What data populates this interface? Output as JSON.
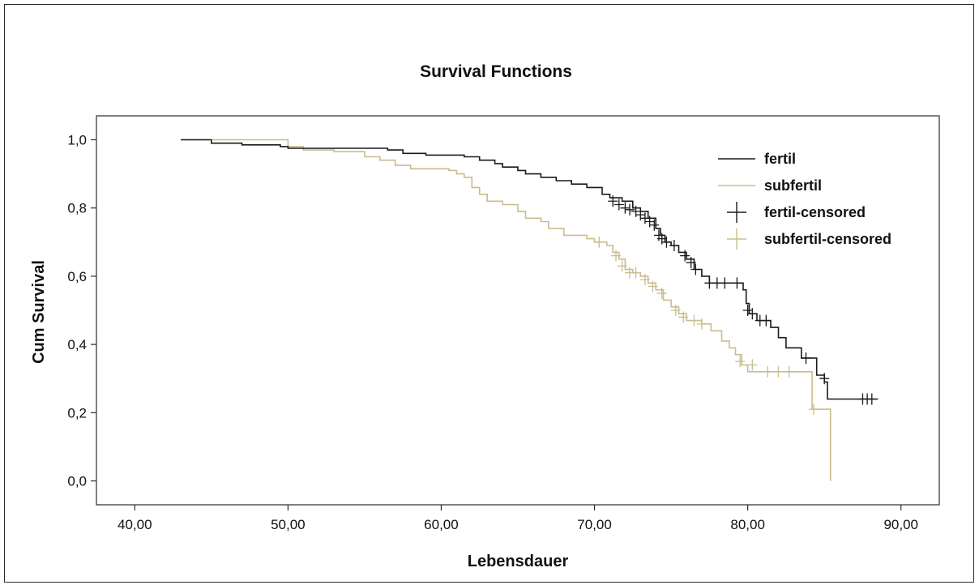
{
  "chart_data": {
    "type": "line",
    "title": "Survival Functions",
    "xlabel": "Lebensdauer",
    "ylabel": "Cum Survival",
    "xlim": [
      37.5,
      92.5
    ],
    "ylim": [
      -0.07,
      1.07
    ],
    "x_ticks": [
      40,
      50,
      60,
      70,
      80,
      90
    ],
    "x_tick_labels": [
      "40,00",
      "50,00",
      "60,00",
      "70,00",
      "80,00",
      "90,00"
    ],
    "y_ticks": [
      0.0,
      0.2,
      0.4,
      0.6,
      0.8,
      1.0
    ],
    "y_tick_labels": [
      "0,0",
      "0,2",
      "0,4",
      "0,6",
      "0,8",
      "1,0"
    ],
    "grid": false,
    "legend_position": "top-right",
    "legend": [
      {
        "label": "fertil",
        "kind": "line",
        "color": "#1a1a1a"
      },
      {
        "label": "subfertil",
        "kind": "line",
        "color": "#c8bd8e"
      },
      {
        "label": "fertil-censored",
        "kind": "cross",
        "color": "#1a1a1a"
      },
      {
        "label": "subfertil-censored",
        "kind": "cross",
        "color": "#c8bd8e"
      }
    ],
    "series": [
      {
        "name": "fertil",
        "color": "#1a1a1a",
        "step": true,
        "points": [
          [
            43,
            1.0
          ],
          [
            45,
            0.99
          ],
          [
            47,
            0.985
          ],
          [
            49.5,
            0.98
          ],
          [
            50,
            0.975
          ],
          [
            54,
            0.975
          ],
          [
            56.5,
            0.97
          ],
          [
            57.5,
            0.96
          ],
          [
            59,
            0.955
          ],
          [
            61.5,
            0.95
          ],
          [
            62.5,
            0.94
          ],
          [
            63.5,
            0.93
          ],
          [
            64,
            0.92
          ],
          [
            65,
            0.91
          ],
          [
            65.5,
            0.9
          ],
          [
            66.5,
            0.89
          ],
          [
            67.5,
            0.88
          ],
          [
            68.5,
            0.87
          ],
          [
            69.5,
            0.86
          ],
          [
            70.5,
            0.84
          ],
          [
            71,
            0.83
          ],
          [
            71.8,
            0.82
          ],
          [
            72.5,
            0.8
          ],
          [
            73,
            0.79
          ],
          [
            73.5,
            0.77
          ],
          [
            74,
            0.74
          ],
          [
            74.3,
            0.72
          ],
          [
            74.6,
            0.7
          ],
          [
            75,
            0.69
          ],
          [
            75.5,
            0.67
          ],
          [
            76,
            0.65
          ],
          [
            76.5,
            0.62
          ],
          [
            77,
            0.6
          ],
          [
            77.5,
            0.58
          ],
          [
            79,
            0.58
          ],
          [
            79.7,
            0.56
          ],
          [
            79.9,
            0.52
          ],
          [
            80.1,
            0.49
          ],
          [
            80.6,
            0.47
          ],
          [
            81.5,
            0.45
          ],
          [
            82,
            0.42
          ],
          [
            82.5,
            0.39
          ],
          [
            83.5,
            0.36
          ],
          [
            84.5,
            0.31
          ],
          [
            85,
            0.29
          ],
          [
            85.2,
            0.24
          ],
          [
            88.5,
            0.24
          ]
        ],
        "censored": [
          [
            71.2,
            0.82
          ],
          [
            71.6,
            0.81
          ],
          [
            72,
            0.8
          ],
          [
            72.3,
            0.795
          ],
          [
            72.7,
            0.79
          ],
          [
            73,
            0.78
          ],
          [
            73.3,
            0.77
          ],
          [
            73.6,
            0.76
          ],
          [
            73.9,
            0.75
          ],
          [
            74.2,
            0.72
          ],
          [
            74.4,
            0.71
          ],
          [
            74.7,
            0.7
          ],
          [
            75.2,
            0.69
          ],
          [
            75.9,
            0.66
          ],
          [
            76.3,
            0.64
          ],
          [
            76.6,
            0.62
          ],
          [
            77.5,
            0.58
          ],
          [
            78,
            0.58
          ],
          [
            78.5,
            0.58
          ],
          [
            79.3,
            0.58
          ],
          [
            80,
            0.5
          ],
          [
            80.3,
            0.49
          ],
          [
            80.8,
            0.47
          ],
          [
            81.2,
            0.47
          ],
          [
            83.8,
            0.36
          ],
          [
            85,
            0.3
          ],
          [
            87.5,
            0.24
          ],
          [
            87.8,
            0.24
          ],
          [
            88.1,
            0.24
          ]
        ]
      },
      {
        "name": "subfertil",
        "color": "#c8bd8e",
        "step": true,
        "points": [
          [
            43,
            1.0
          ],
          [
            49.5,
            1.0
          ],
          [
            50,
            0.98
          ],
          [
            51,
            0.97
          ],
          [
            53,
            0.965
          ],
          [
            55,
            0.95
          ],
          [
            56,
            0.94
          ],
          [
            57,
            0.925
          ],
          [
            58,
            0.915
          ],
          [
            60.5,
            0.91
          ],
          [
            61,
            0.9
          ],
          [
            61.5,
            0.89
          ],
          [
            62,
            0.86
          ],
          [
            62.5,
            0.84
          ],
          [
            63,
            0.82
          ],
          [
            64,
            0.81
          ],
          [
            65,
            0.79
          ],
          [
            65.5,
            0.77
          ],
          [
            66.5,
            0.76
          ],
          [
            67,
            0.74
          ],
          [
            68,
            0.72
          ],
          [
            69.5,
            0.71
          ],
          [
            70,
            0.7
          ],
          [
            70.8,
            0.69
          ],
          [
            71.2,
            0.67
          ],
          [
            71.6,
            0.65
          ],
          [
            72,
            0.62
          ],
          [
            72.5,
            0.61
          ],
          [
            73,
            0.6
          ],
          [
            73.5,
            0.58
          ],
          [
            74,
            0.56
          ],
          [
            74.5,
            0.53
          ],
          [
            75,
            0.51
          ],
          [
            75.5,
            0.49
          ],
          [
            76,
            0.47
          ],
          [
            77,
            0.46
          ],
          [
            77.6,
            0.44
          ],
          [
            78.3,
            0.41
          ],
          [
            78.8,
            0.39
          ],
          [
            79.2,
            0.37
          ],
          [
            79.6,
            0.34
          ],
          [
            80,
            0.32
          ],
          [
            84,
            0.32
          ],
          [
            84.2,
            0.21
          ],
          [
            85.3,
            0.21
          ],
          [
            85.4,
            0.0
          ]
        ],
        "censored": [
          [
            70.3,
            0.7
          ],
          [
            71.4,
            0.66
          ],
          [
            71.8,
            0.63
          ],
          [
            72.3,
            0.61
          ],
          [
            72.7,
            0.61
          ],
          [
            73.3,
            0.59
          ],
          [
            73.8,
            0.57
          ],
          [
            74.4,
            0.55
          ],
          [
            75.3,
            0.5
          ],
          [
            75.8,
            0.48
          ],
          [
            76.5,
            0.47
          ],
          [
            77,
            0.46
          ],
          [
            79.5,
            0.35
          ],
          [
            80.3,
            0.34
          ],
          [
            81.3,
            0.32
          ],
          [
            82,
            0.32
          ],
          [
            82.7,
            0.32
          ],
          [
            84.3,
            0.21
          ]
        ]
      }
    ]
  }
}
